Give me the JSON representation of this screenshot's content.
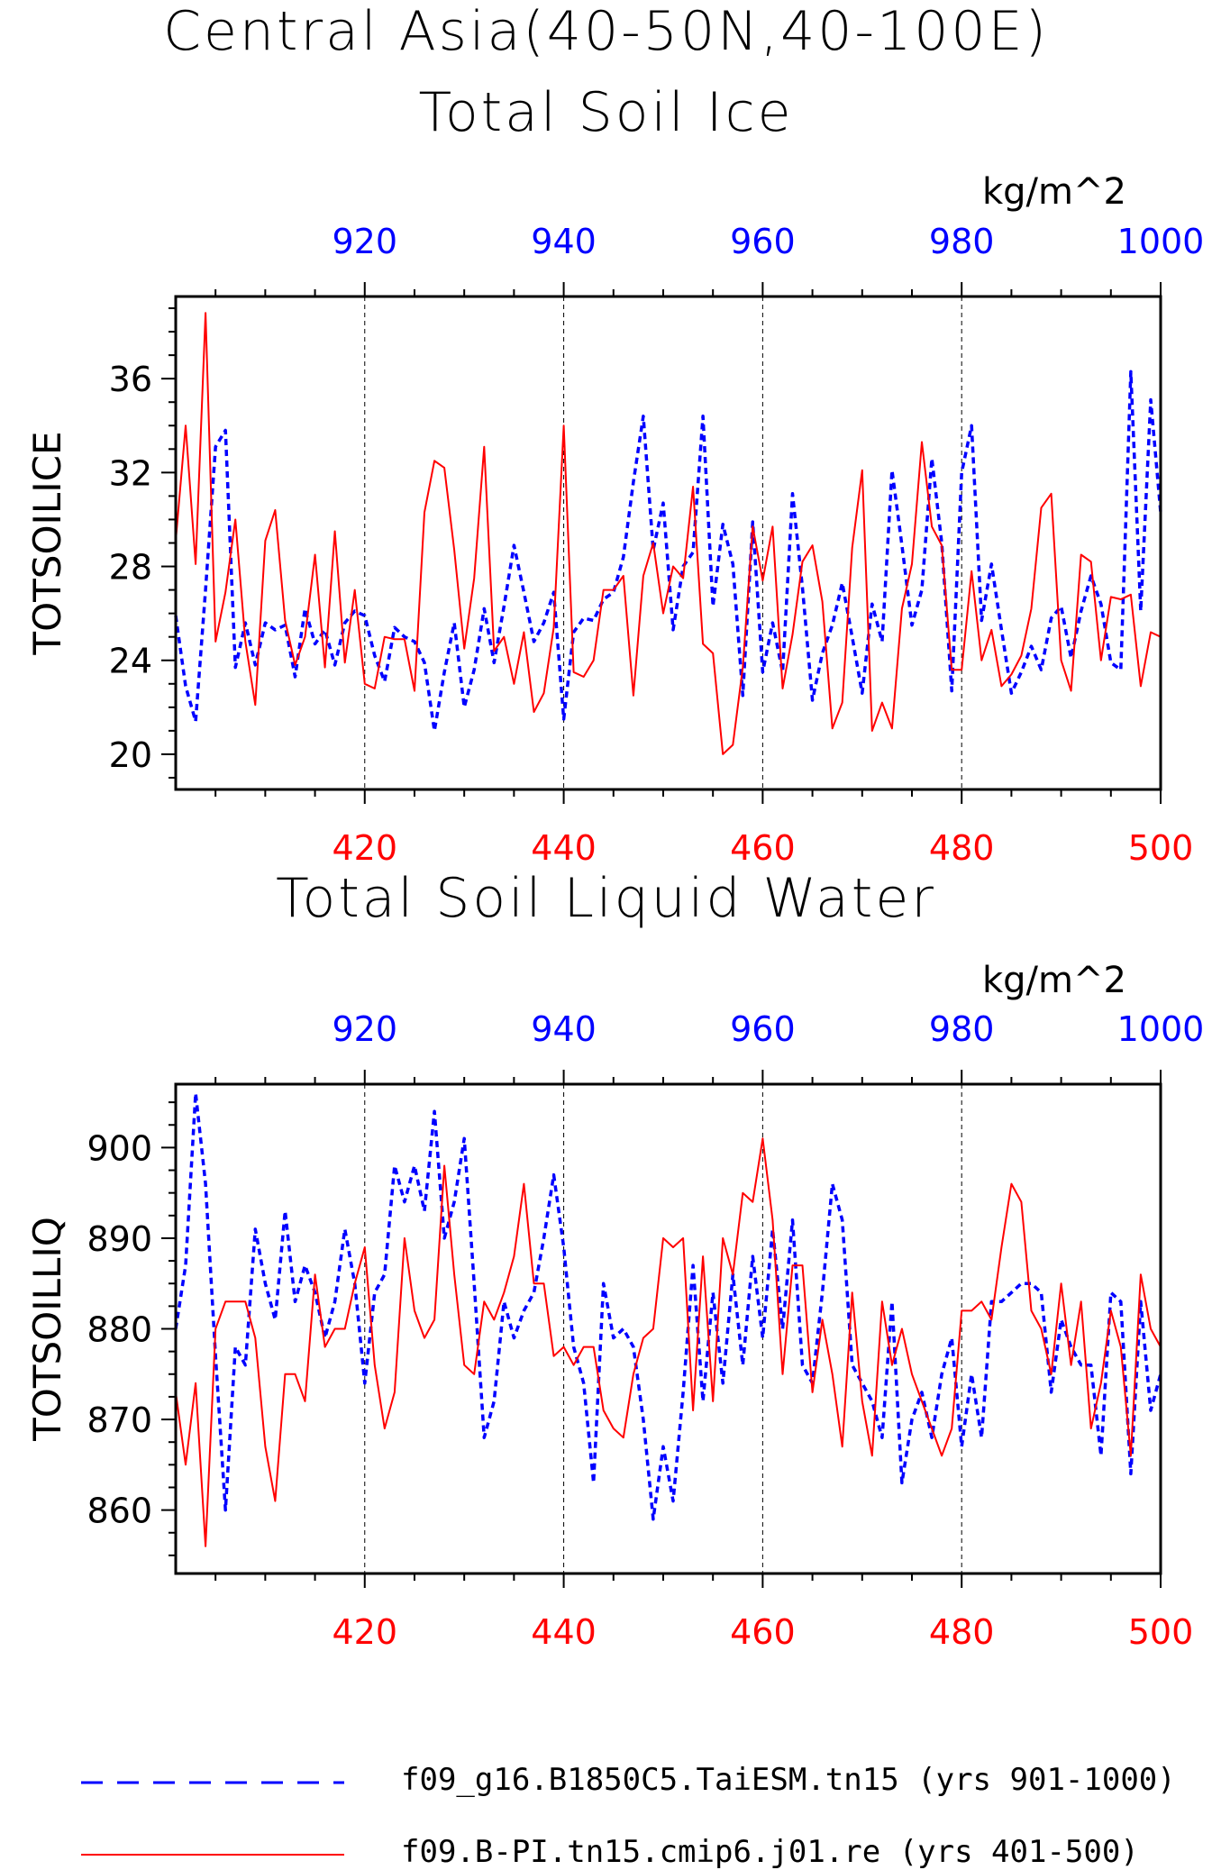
{
  "figure_title_1": "Central Asia(40-50N,40-100E)",
  "chart_data": [
    {
      "type": "line",
      "title": "Total Soil Ice",
      "ylabel": "TOTSOILICE",
      "unit": "kg/m^2",
      "ylim": [
        18.5,
        39.5
      ],
      "yticks": [
        20,
        24,
        28,
        32,
        36
      ],
      "bottom_axis": {
        "ticks": [
          420,
          440,
          460,
          480,
          500
        ],
        "range": [
          401,
          500
        ],
        "color": "#ff0000"
      },
      "top_axis": {
        "ticks": [
          920,
          940,
          960,
          980,
          1000
        ],
        "range": [
          901,
          1000
        ],
        "color": "#0000ff"
      },
      "grid": "vertical dashed at major ticks",
      "series": [
        {
          "name": "f09_g16.B1850C5.TaiESM.tn15 (yrs 901-1000)",
          "axis": "top",
          "color": "#0000ff",
          "style": "dashed",
          "values": [
            25.9,
            22.9,
            21.4,
            27.0,
            33.1,
            33.8,
            23.7,
            25.6,
            23.8,
            25.6,
            25.3,
            25.5,
            23.3,
            26.2,
            24.7,
            25.3,
            23.8,
            25.6,
            26.1,
            25.9,
            24.2,
            23.1,
            25.4,
            25.0,
            24.8,
            23.9,
            21.0,
            23.5,
            25.6,
            22.0,
            23.6,
            26.2,
            23.9,
            26.3,
            28.9,
            26.9,
            24.8,
            25.6,
            26.9,
            21.5,
            25.2,
            25.8,
            25.7,
            26.6,
            26.9,
            28.4,
            31.6,
            34.4,
            28.7,
            30.7,
            25.3,
            28.0,
            28.6,
            34.4,
            26.3,
            29.8,
            28.1,
            22.5,
            29.9,
            23.5,
            25.6,
            23.5,
            31.1,
            27.1,
            22.3,
            24.3,
            25.5,
            27.3,
            25.0,
            22.6,
            26.4,
            24.8,
            32.1,
            28.9,
            25.5,
            27.0,
            32.6,
            29.0,
            22.7,
            32.0,
            34.0,
            25.7,
            28.1,
            25.3,
            22.6,
            23.5,
            24.6,
            23.6,
            25.8,
            26.3,
            24.1,
            26.1,
            27.6,
            26.4,
            23.9,
            23.6,
            36.3,
            26.1,
            35.1,
            30.3
          ]
        },
        {
          "name": "f09.B-PI.tn15.cmip6.j01.re (yrs 401-500)",
          "axis": "bottom",
          "color": "#ff0000",
          "style": "solid",
          "values": [
            29.1,
            34.0,
            28.1,
            38.8,
            24.8,
            26.9,
            30.0,
            24.8,
            22.1,
            29.1,
            30.4,
            25.7,
            23.8,
            25.0,
            28.5,
            23.7,
            29.5,
            23.9,
            27.0,
            23.0,
            22.8,
            25.0,
            24.9,
            24.9,
            22.7,
            30.3,
            32.5,
            32.2,
            28.7,
            24.5,
            27.5,
            33.1,
            24.4,
            25.0,
            23.0,
            25.2,
            21.8,
            22.6,
            25.4,
            34.0,
            23.5,
            23.3,
            24.0,
            27.0,
            27.0,
            27.6,
            22.5,
            27.6,
            29.0,
            26.0,
            28.0,
            27.5,
            31.4,
            24.7,
            24.3,
            20.0,
            20.4,
            23.7,
            29.7,
            27.4,
            29.7,
            22.8,
            25.1,
            28.2,
            28.9,
            26.5,
            21.1,
            22.2,
            28.8,
            32.1,
            21.0,
            22.2,
            21.1,
            26.2,
            28.1,
            33.3,
            29.7,
            28.9,
            23.6,
            23.6,
            27.8,
            24.0,
            25.3,
            22.9,
            23.4,
            24.2,
            26.2,
            30.5,
            31.1,
            24.0,
            22.7,
            28.5,
            28.2,
            24.0,
            26.7,
            26.6,
            26.8,
            22.9,
            25.2,
            25.0
          ]
        }
      ]
    },
    {
      "type": "line",
      "title": "Total Soil Liquid Water",
      "ylabel": "TOTSOILLIQ",
      "unit": "kg/m^2",
      "ylim": [
        853,
        907
      ],
      "yticks": [
        860,
        870,
        880,
        890,
        900
      ],
      "bottom_axis": {
        "ticks": [
          420,
          440,
          460,
          480,
          500
        ],
        "range": [
          401,
          500
        ],
        "color": "#ff0000"
      },
      "top_axis": {
        "ticks": [
          920,
          940,
          960,
          980,
          1000
        ],
        "range": [
          901,
          1000
        ],
        "color": "#0000ff"
      },
      "grid": "vertical dashed at major ticks",
      "series": [
        {
          "name": "f09_g16.B1850C5.TaiESM.tn15 (yrs 901-1000)",
          "axis": "top",
          "color": "#0000ff",
          "style": "dashed",
          "values": [
            880,
            887,
            906,
            896,
            877,
            860,
            878,
            876,
            891,
            885,
            881,
            893,
            883,
            887,
            884,
            879,
            883,
            891,
            885,
            874,
            884,
            886,
            898,
            894,
            898,
            893,
            904,
            890,
            894,
            901,
            885,
            868,
            872,
            883,
            879,
            882,
            884,
            890,
            897,
            889,
            878,
            874,
            863,
            885,
            879,
            880,
            878,
            870,
            859,
            867,
            861,
            873,
            887,
            872,
            884,
            874,
            886,
            876,
            888,
            879,
            891,
            880,
            892,
            876,
            874,
            884,
            896,
            892,
            876,
            874,
            872,
            868,
            883,
            863,
            870,
            873,
            868,
            875,
            879,
            867,
            875,
            868,
            883,
            883,
            884,
            885,
            885,
            884,
            873,
            881,
            878,
            876,
            876,
            866,
            884,
            883,
            864,
            883,
            871,
            875
          ]
        },
        {
          "name": "f09.B-PI.tn15.cmip6.j01.re (yrs 401-500)",
          "axis": "bottom",
          "color": "#ff0000",
          "style": "solid",
          "values": [
            873,
            865,
            874,
            856,
            880,
            883,
            883,
            883,
            879,
            867,
            861,
            875,
            875,
            872,
            886,
            878,
            880,
            880,
            885,
            889,
            876,
            869,
            873,
            890,
            882,
            879,
            881,
            898,
            886,
            876,
            875,
            883,
            881,
            884,
            888,
            896,
            885,
            885,
            877,
            878,
            876,
            878,
            878,
            871,
            869,
            868,
            875,
            879,
            880,
            890,
            889,
            890,
            871,
            888,
            872,
            890,
            886,
            895,
            894,
            901,
            892,
            875,
            887,
            887,
            873,
            881,
            875,
            867,
            884,
            872,
            866,
            883,
            876,
            880,
            875,
            872,
            869,
            866,
            869,
            882,
            882,
            883,
            881,
            889,
            896,
            894,
            882,
            880,
            875,
            885,
            876,
            883,
            869,
            874,
            882,
            878,
            866,
            886,
            880,
            878
          ]
        }
      ]
    }
  ],
  "legend": [
    {
      "label": "f09_g16.B1850C5.TaiESM.tn15 (yrs 901-1000)",
      "color": "#0000ff",
      "style": "dashed"
    },
    {
      "label": "f09.B-PI.tn15.cmip6.j01.re (yrs 401-500)",
      "color": "#ff0000",
      "style": "solid"
    }
  ]
}
